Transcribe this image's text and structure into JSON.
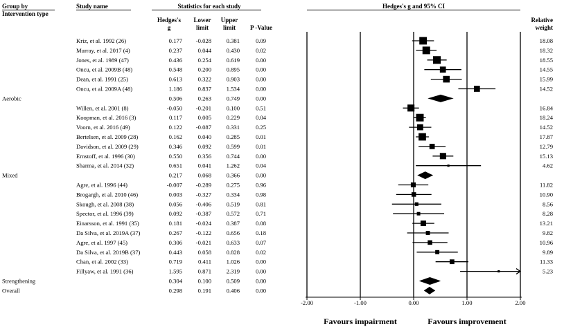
{
  "headers": {
    "group_by_line1": "Group by",
    "group_by_line2": "Intervention type",
    "study_name": "Study name",
    "statistics": "Statistics for each study",
    "plot_title": "Hedges's g and 95% CI",
    "hedges_line1": "Hedges's",
    "hedges_line2": "g",
    "lower_line1": "Lower",
    "lower_line2": "limit",
    "upper_line1": "Upper",
    "upper_line2": "limit",
    "pvalue": "P -Value",
    "weight_line1": "Relative",
    "weight_line2": "weight"
  },
  "footer": {
    "favours_left": "Favours impairment",
    "favours_right": "Favours improvement"
  },
  "colors": {
    "ink": "#000000",
    "background": "#ffffff"
  },
  "chart_data": {
    "type": "forest",
    "x_axis": {
      "ticks": [
        -2,
        -1,
        0,
        1,
        2
      ],
      "tick_labels": [
        "-2.00",
        "-1.00",
        "0.00",
        "1.00",
        "2.00"
      ],
      "range": [
        -2,
        2
      ]
    },
    "groups": [
      {
        "label": "Aerobic",
        "studies": [
          {
            "name": "Kriz, et al. 1992 (26)",
            "g": "0.177",
            "lower": "-0.028",
            "upper": "0.381",
            "p": "0.09",
            "weight": "18.08"
          },
          {
            "name": "Murray, et al. 2017 (4)",
            "g": "0.237",
            "lower": "0.044",
            "upper": "0.430",
            "p": "0.02",
            "weight": "18.32"
          },
          {
            "name": "Jones, et al. 1989 (47)",
            "g": "0.436",
            "lower": "0.254",
            "upper": "0.619",
            "p": "0.00",
            "weight": "18.55"
          },
          {
            "name": "Oncu, et al. 2009B (48)",
            "g": "0.548",
            "lower": "0.200",
            "upper": "0.895",
            "p": "0.00",
            "weight": "14.55"
          },
          {
            "name": "Dean, et al. 1991 (25)",
            "g": "0.613",
            "lower": "0.322",
            "upper": "0.903",
            "p": "0.00",
            "weight": "15.99"
          },
          {
            "name": "Oncu, et al. 2009A (48)",
            "g": "1.186",
            "lower": "0.837",
            "upper": "1.534",
            "p": "0.00",
            "weight": "14.52"
          }
        ],
        "summary": {
          "g": "0.506",
          "lower": "0.263",
          "upper": "0.749",
          "p": "0.00"
        }
      },
      {
        "label": "Mixed",
        "studies": [
          {
            "name": "Willen, et al. 2001 (8)",
            "g": "-0.050",
            "lower": "-0.201",
            "upper": "0.100",
            "p": "0.51",
            "weight": "16.84"
          },
          {
            "name": "Koopman, et al. 2016 (3)",
            "g": "0.117",
            "lower": "0.005",
            "upper": "0.229",
            "p": "0.04",
            "weight": "18.24"
          },
          {
            "name": "Voorn, et al. 2016 (49)",
            "g": "0.122",
            "lower": "-0.087",
            "upper": "0.331",
            "p": "0.25",
            "weight": "14.52"
          },
          {
            "name": "Bertelsen, et al. 2009 (28)",
            "g": "0.162",
            "lower": "0.040",
            "upper": "0.285",
            "p": "0.01",
            "weight": "17.87"
          },
          {
            "name": "Davidson, et al. 2009 (29)",
            "g": "0.346",
            "lower": "0.092",
            "upper": "0.599",
            "p": "0.01",
            "weight": "12.79"
          },
          {
            "name": "Ernstoff, et al. 1996 (30)",
            "g": "0.550",
            "lower": "0.356",
            "upper": "0.744",
            "p": "0.00",
            "weight": "15.13"
          },
          {
            "name": "Sharma, et al. 2014 (32)",
            "g": "0.651",
            "lower": "0.041",
            "upper": "1.262",
            "p": "0.04",
            "weight": "4.62"
          }
        ],
        "summary": {
          "g": "0.217",
          "lower": "0.068",
          "upper": "0.366",
          "p": "0.00"
        }
      },
      {
        "label": "Strengthening",
        "studies": [
          {
            "name": "Agre, et al. 1996 (44)",
            "g": "-0.007",
            "lower": "-0.289",
            "upper": "0.275",
            "p": "0.96",
            "weight": "11.82"
          },
          {
            "name": "Brogargh, et al. 2010 (46)",
            "g": "0.003",
            "lower": "-0.327",
            "upper": "0.334",
            "p": "0.98",
            "weight": "10.90"
          },
          {
            "name": "Skough, et al. 2008 (38)",
            "g": "0.056",
            "lower": "-0.406",
            "upper": "0.519",
            "p": "0.81",
            "weight": "8.56"
          },
          {
            "name": "Spector, et al. 1996 (39)",
            "g": "0.092",
            "lower": "-0.387",
            "upper": "0.572",
            "p": "0.71",
            "weight": "8.28"
          },
          {
            "name": "Einarsson, et al. 1991 (35)",
            "g": "0.181",
            "lower": "-0.024",
            "upper": "0.387",
            "p": "0.08",
            "weight": "13.21"
          },
          {
            "name": "Da Silva, et al. 2019A (37)",
            "g": "0.267",
            "lower": "-0.122",
            "upper": "0.656",
            "p": "0.18",
            "weight": "9.82"
          },
          {
            "name": "Agre, et al. 1997 (45)",
            "g": "0.306",
            "lower": "-0.021",
            "upper": "0.633",
            "p": "0.07",
            "weight": "10.96"
          },
          {
            "name": "Da Silva, et al. 2019B (37)",
            "g": "0.443",
            "lower": "0.058",
            "upper": "0.828",
            "p": "0.02",
            "weight": "9.89"
          },
          {
            "name": "Chan, et al. 2002 (33)",
            "g": "0.719",
            "lower": "0.411",
            "upper": "1.026",
            "p": "0.00",
            "weight": "11.33"
          },
          {
            "name": "Fillyaw, et al. 1991 (36)",
            "g": "1.595",
            "lower": "0.871",
            "upper": "2.319",
            "p": "0.00",
            "weight": "5.23"
          }
        ],
        "summary": {
          "g": "0.304",
          "lower": "0.100",
          "upper": "0.509",
          "p": "0.00"
        }
      }
    ],
    "overall": {
      "label": "Overall",
      "g": "0.298",
      "lower": "0.191",
      "upper": "0.406",
      "p": "0.00"
    }
  }
}
